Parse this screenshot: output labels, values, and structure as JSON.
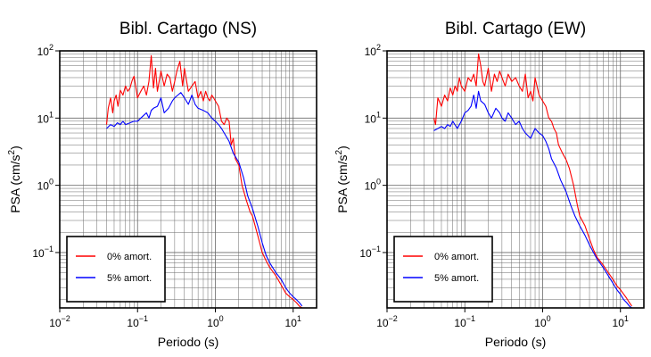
{
  "chart_data": [
    {
      "type": "line",
      "title": "Bibl. Cartago (NS)",
      "xlabel": "Periodo (s)",
      "ylabel_main": "PSA (cm/s",
      "ylabel_sup": "2",
      "ylabel_tail": ")",
      "x_scale": "log",
      "y_scale": "log",
      "xlim": [
        0.01,
        20
      ],
      "ylim": [
        0.015,
        100
      ],
      "grid": true,
      "legend": "bottom-left",
      "x_ticks": [
        {
          "base": "10",
          "exp": "−2"
        },
        {
          "base": "10",
          "exp": "−1"
        },
        {
          "base": "10",
          "exp": "0"
        },
        {
          "base": "10",
          "exp": "1"
        }
      ],
      "y_ticks": [
        {
          "base": "10",
          "exp": "−1"
        },
        {
          "base": "10",
          "exp": "0"
        },
        {
          "base": "10",
          "exp": "1"
        },
        {
          "base": "10",
          "exp": "2"
        }
      ],
      "series": [
        {
          "name": "0% amort.",
          "color": "#ff0000",
          "x": [
            0.04,
            0.042,
            0.045,
            0.048,
            0.05,
            0.053,
            0.056,
            0.06,
            0.065,
            0.07,
            0.075,
            0.08,
            0.085,
            0.09,
            0.1,
            0.11,
            0.12,
            0.13,
            0.14,
            0.15,
            0.16,
            0.17,
            0.18,
            0.2,
            0.22,
            0.24,
            0.26,
            0.28,
            0.3,
            0.32,
            0.35,
            0.38,
            0.4,
            0.42,
            0.45,
            0.5,
            0.55,
            0.6,
            0.65,
            0.7,
            0.75,
            0.8,
            0.85,
            0.9,
            0.95,
            1.0,
            1.1,
            1.2,
            1.3,
            1.4,
            1.5,
            1.6,
            1.7,
            1.8,
            2.0,
            2.2,
            2.5,
            2.8,
            3.0,
            3.5,
            4.0,
            4.5,
            5.0,
            6.0,
            7.0,
            8.0,
            9.0,
            10.0,
            11.0,
            12.0,
            13.0
          ],
          "y": [
            8,
            14,
            20,
            12,
            18,
            22,
            15,
            26,
            22,
            30,
            25,
            28,
            36,
            42,
            20,
            25,
            30,
            22,
            35,
            85,
            28,
            55,
            25,
            50,
            30,
            45,
            40,
            25,
            35,
            50,
            70,
            30,
            55,
            40,
            25,
            30,
            35,
            20,
            25,
            18,
            25,
            20,
            18,
            22,
            20,
            18,
            15,
            9,
            8,
            10,
            9,
            4,
            5,
            2.5,
            2.0,
            1.0,
            0.6,
            0.4,
            0.35,
            0.18,
            0.1,
            0.075,
            0.06,
            0.045,
            0.033,
            0.025,
            0.022,
            0.02,
            0.018,
            0.016,
            0.015
          ]
        },
        {
          "name": "5% amort.",
          "color": "#0000ff",
          "x": [
            0.04,
            0.045,
            0.05,
            0.055,
            0.06,
            0.065,
            0.07,
            0.08,
            0.09,
            0.1,
            0.11,
            0.12,
            0.13,
            0.14,
            0.15,
            0.16,
            0.18,
            0.2,
            0.22,
            0.25,
            0.28,
            0.3,
            0.33,
            0.36,
            0.4,
            0.45,
            0.5,
            0.55,
            0.6,
            0.7,
            0.8,
            0.9,
            1.0,
            1.1,
            1.2,
            1.3,
            1.5,
            1.7,
            2.0,
            2.3,
            2.6,
            3.0,
            3.5,
            4.0,
            4.5,
            5.0,
            6.0,
            7.0,
            8.0,
            9.0,
            10.0,
            11.0,
            12.0,
            13.0
          ],
          "y": [
            7,
            8,
            7.5,
            8.5,
            8,
            9,
            8,
            8.5,
            9,
            9,
            10,
            11,
            12,
            10,
            13,
            14,
            15,
            20,
            12,
            14,
            18,
            20,
            22,
            24,
            20,
            16,
            22,
            16,
            14,
            13,
            12,
            10,
            9,
            8,
            7,
            6,
            4.5,
            3,
            2.2,
            1.3,
            0.7,
            0.45,
            0.25,
            0.14,
            0.09,
            0.07,
            0.05,
            0.04,
            0.03,
            0.025,
            0.022,
            0.02,
            0.018,
            0.016
          ]
        }
      ]
    },
    {
      "type": "line",
      "title": "Bibl. Cartago (EW)",
      "xlabel": "Periodo (s)",
      "ylabel_main": "PSA (cm/s",
      "ylabel_sup": "2",
      "ylabel_tail": ")",
      "x_scale": "log",
      "y_scale": "log",
      "xlim": [
        0.01,
        20
      ],
      "ylim": [
        0.015,
        100
      ],
      "grid": true,
      "legend": "bottom-left",
      "x_ticks": [
        {
          "base": "10",
          "exp": "−2"
        },
        {
          "base": "10",
          "exp": "−1"
        },
        {
          "base": "10",
          "exp": "0"
        },
        {
          "base": "10",
          "exp": "1"
        }
      ],
      "y_ticks": [
        {
          "base": "10",
          "exp": "−1"
        },
        {
          "base": "10",
          "exp": "0"
        },
        {
          "base": "10",
          "exp": "1"
        },
        {
          "base": "10",
          "exp": "2"
        }
      ],
      "series": [
        {
          "name": "0% amort.",
          "color": "#ff0000",
          "x": [
            0.04,
            0.042,
            0.045,
            0.05,
            0.055,
            0.06,
            0.065,
            0.07,
            0.075,
            0.08,
            0.085,
            0.09,
            0.1,
            0.11,
            0.12,
            0.13,
            0.14,
            0.15,
            0.16,
            0.17,
            0.18,
            0.2,
            0.22,
            0.24,
            0.26,
            0.28,
            0.3,
            0.33,
            0.36,
            0.4,
            0.45,
            0.5,
            0.55,
            0.6,
            0.65,
            0.7,
            0.75,
            0.8,
            0.9,
            1.0,
            1.1,
            1.2,
            1.3,
            1.4,
            1.5,
            1.6,
            1.8,
            2.0,
            2.2,
            2.5,
            2.8,
            3.0,
            3.5,
            4.0,
            4.5,
            5.0,
            6.0,
            7.0,
            8.0,
            9.0,
            10.0,
            11.0,
            12.0,
            13.0,
            14.0
          ],
          "y": [
            10,
            8,
            20,
            15,
            22,
            18,
            28,
            22,
            30,
            25,
            40,
            30,
            25,
            40,
            35,
            45,
            30,
            90,
            60,
            35,
            30,
            55,
            25,
            45,
            35,
            50,
            40,
            30,
            45,
            35,
            40,
            30,
            25,
            45,
            20,
            25,
            18,
            40,
            22,
            18,
            15,
            10,
            9,
            7,
            6,
            4,
            3,
            2.4,
            1.8,
            1.0,
            0.5,
            0.35,
            0.25,
            0.16,
            0.11,
            0.085,
            0.065,
            0.05,
            0.04,
            0.032,
            0.028,
            0.024,
            0.021,
            0.018,
            0.016
          ]
        },
        {
          "name": "5% amort.",
          "color": "#0000ff",
          "x": [
            0.04,
            0.045,
            0.05,
            0.055,
            0.06,
            0.065,
            0.07,
            0.08,
            0.09,
            0.1,
            0.11,
            0.12,
            0.13,
            0.14,
            0.15,
            0.16,
            0.18,
            0.2,
            0.22,
            0.25,
            0.28,
            0.3,
            0.33,
            0.36,
            0.4,
            0.45,
            0.5,
            0.55,
            0.6,
            0.7,
            0.8,
            0.9,
            1.0,
            1.1,
            1.2,
            1.3,
            1.5,
            1.7,
            2.0,
            2.3,
            2.6,
            3.0,
            3.5,
            4.0,
            4.5,
            5.0,
            6.0,
            7.0,
            8.0,
            9.0,
            10.0,
            11.0,
            12.0,
            13.0,
            14.0
          ],
          "y": [
            6.5,
            7,
            7.5,
            7,
            8,
            7.5,
            9,
            7,
            9,
            12,
            13,
            15,
            22,
            14,
            25,
            18,
            16,
            12,
            10,
            14,
            12,
            10,
            9,
            12,
            10,
            8,
            9,
            7,
            6,
            5,
            7,
            6,
            5.5,
            4.5,
            3.5,
            2.5,
            1.8,
            1.2,
            0.8,
            0.5,
            0.35,
            0.25,
            0.18,
            0.13,
            0.1,
            0.08,
            0.06,
            0.045,
            0.035,
            0.028,
            0.024,
            0.02,
            0.018,
            0.016,
            0.015
          ]
        }
      ]
    }
  ]
}
